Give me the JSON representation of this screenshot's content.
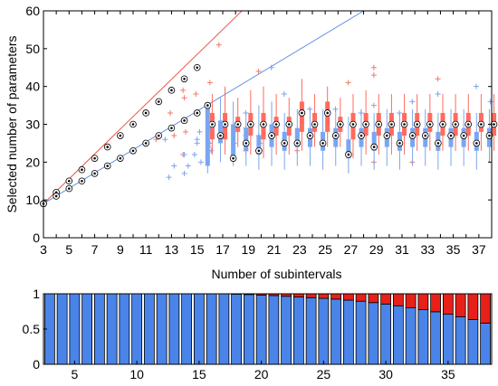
{
  "chart_data": [
    {
      "type": "box",
      "xlabel": "Number of subintervals",
      "ylabel": "Selected number of parameters",
      "xlim": [
        3,
        38
      ],
      "ylim": [
        0,
        60
      ],
      "xticks": [
        3,
        5,
        7,
        9,
        11,
        13,
        15,
        17,
        19,
        21,
        23,
        25,
        27,
        29,
        31,
        33,
        35,
        37
      ],
      "yticks": [
        0,
        10,
        20,
        30,
        40,
        50,
        60
      ],
      "grid": false,
      "colors": {
        "red": "#ff6b5e",
        "blue": "#7aa6f0",
        "red_line": "#e8584a",
        "blue_line": "#5f8fe6",
        "outlier_red": "#f07a6b",
        "outlier_blue": "#7fa2ea"
      },
      "reference_lines": [
        {
          "color": "red",
          "x": [
            3,
            18.5
          ],
          "y": [
            9,
            60
          ]
        },
        {
          "color": "blue",
          "x": [
            3,
            28
          ],
          "y": [
            9,
            60
          ]
        }
      ],
      "series": [
        {
          "color": "red",
          "boxes": [
            {
              "x": 3,
              "q1": 9,
              "median": 9,
              "q3": 9,
              "wlo": 9,
              "whi": 9
            },
            {
              "x": 4,
              "q1": 12,
              "median": 12,
              "q3": 12,
              "wlo": 12,
              "whi": 12
            },
            {
              "x": 5,
              "q1": 15,
              "median": 15,
              "q3": 15,
              "wlo": 15,
              "whi": 15
            },
            {
              "x": 6,
              "q1": 18,
              "median": 18,
              "q3": 18,
              "wlo": 18,
              "whi": 18
            },
            {
              "x": 7,
              "q1": 21,
              "median": 21,
              "q3": 21,
              "wlo": 21,
              "whi": 21
            },
            {
              "x": 8,
              "q1": 24,
              "median": 24,
              "q3": 24,
              "wlo": 24,
              "whi": 24
            },
            {
              "x": 9,
              "q1": 27,
              "median": 27,
              "q3": 27,
              "wlo": 27,
              "whi": 27
            },
            {
              "x": 10,
              "q1": 30,
              "median": 30,
              "q3": 30,
              "wlo": 30,
              "whi": 30
            },
            {
              "x": 11,
              "q1": 33,
              "median": 33,
              "q3": 33,
              "wlo": 33,
              "whi": 33
            },
            {
              "x": 12,
              "q1": 36,
              "median": 36,
              "q3": 36,
              "wlo": 36,
              "whi": 36
            },
            {
              "x": 13,
              "q1": 39,
              "median": 39,
              "q3": 39,
              "wlo": 39,
              "whi": 39
            },
            {
              "x": 14,
              "q1": 42,
              "median": 42,
              "q3": 42,
              "wlo": 42,
              "whi": 42
            },
            {
              "x": 15,
              "q1": 45,
              "median": 45,
              "q3": 45,
              "wlo": 45,
              "whi": 45
            },
            {
              "x": 16,
              "q1": 26,
              "median": 30,
              "q3": 33,
              "wlo": 22,
              "whi": 38
            },
            {
              "x": 17,
              "q1": 26,
              "median": 30,
              "q3": 33,
              "wlo": 22,
              "whi": 40
            },
            {
              "x": 18,
              "q1": 28,
              "median": 30,
              "q3": 32,
              "wlo": 24,
              "whi": 37
            },
            {
              "x": 19,
              "q1": 27,
              "median": 30,
              "q3": 33,
              "wlo": 22,
              "whi": 39
            },
            {
              "x": 20,
              "q1": 26,
              "median": 30,
              "q3": 33,
              "wlo": 21,
              "whi": 40
            },
            {
              "x": 21,
              "q1": 27,
              "median": 30,
              "q3": 32,
              "wlo": 22,
              "whi": 38
            },
            {
              "x": 22,
              "q1": 27,
              "median": 30,
              "q3": 32,
              "wlo": 22,
              "whi": 37
            },
            {
              "x": 23,
              "q1": 28,
              "median": 33,
              "q3": 36,
              "wlo": 23,
              "whi": 42
            },
            {
              "x": 24,
              "q1": 28,
              "median": 30,
              "q3": 33,
              "wlo": 24,
              "whi": 38
            },
            {
              "x": 25,
              "q1": 28,
              "median": 33,
              "q3": 36,
              "wlo": 24,
              "whi": 40
            },
            {
              "x": 26,
              "q1": 28,
              "median": 30,
              "q3": 32,
              "wlo": 24,
              "whi": 37
            },
            {
              "x": 27,
              "q1": 26,
              "median": 30,
              "q3": 33,
              "wlo": 21,
              "whi": 38
            },
            {
              "x": 28,
              "q1": 27,
              "median": 30,
              "q3": 33,
              "wlo": 22,
              "whi": 39
            },
            {
              "x": 29,
              "q1": 27,
              "median": 30,
              "q3": 33,
              "wlo": 22,
              "whi": 38
            },
            {
              "x": 30,
              "q1": 27,
              "median": 30,
              "q3": 33,
              "wlo": 22,
              "whi": 38
            },
            {
              "x": 31,
              "q1": 27,
              "median": 30,
              "q3": 33,
              "wlo": 22,
              "whi": 38
            },
            {
              "x": 32,
              "q1": 27,
              "median": 30,
              "q3": 33,
              "wlo": 23,
              "whi": 38
            },
            {
              "x": 33,
              "q1": 28,
              "median": 30,
              "q3": 33,
              "wlo": 23,
              "whi": 38
            },
            {
              "x": 34,
              "q1": 27,
              "median": 30,
              "q3": 33,
              "wlo": 23,
              "whi": 38
            },
            {
              "x": 35,
              "q1": 27,
              "median": 30,
              "q3": 33,
              "wlo": 23,
              "whi": 38
            },
            {
              "x": 36,
              "q1": 27,
              "median": 30,
              "q3": 33,
              "wlo": 23,
              "whi": 38
            },
            {
              "x": 37,
              "q1": 28,
              "median": 30,
              "q3": 33,
              "wlo": 23,
              "whi": 38
            },
            {
              "x": 38,
              "q1": 27,
              "median": 30,
              "q3": 33,
              "wlo": 23,
              "whi": 38
            }
          ],
          "outliers": [
            [
              15.9,
              23
            ],
            [
              15.9,
              24
            ],
            [
              16,
              41
            ],
            [
              16.7,
              51
            ],
            [
              18.8,
              23
            ],
            [
              19.8,
              44
            ],
            [
              22.8,
              23
            ],
            [
              26.8,
              41
            ],
            [
              28.8,
              45
            ],
            [
              28.8,
              43
            ],
            [
              28.8,
              20
            ],
            [
              31.8,
              20
            ],
            [
              33.8,
              42
            ],
            [
              13.9,
              39
            ],
            [
              14.9,
              38
            ],
            [
              14,
              37
            ],
            [
              12.9,
              33
            ],
            [
              14.1,
              28
            ],
            [
              13.2,
              27
            ],
            [
              11.8,
              26
            ],
            [
              13.9,
              22
            ]
          ]
        },
        {
          "color": "blue",
          "boxes": [
            {
              "x": 3,
              "q1": 9,
              "median": 9,
              "q3": 9,
              "wlo": 9,
              "whi": 9
            },
            {
              "x": 4,
              "q1": 11,
              "median": 11,
              "q3": 11,
              "wlo": 11,
              "whi": 11
            },
            {
              "x": 5,
              "q1": 13,
              "median": 13,
              "q3": 13,
              "wlo": 13,
              "whi": 13
            },
            {
              "x": 6,
              "q1": 15,
              "median": 15,
              "q3": 15,
              "wlo": 15,
              "whi": 15
            },
            {
              "x": 7,
              "q1": 17,
              "median": 17,
              "q3": 17,
              "wlo": 17,
              "whi": 17
            },
            {
              "x": 8,
              "q1": 19,
              "median": 19,
              "q3": 19,
              "wlo": 19,
              "whi": 19
            },
            {
              "x": 9,
              "q1": 21,
              "median": 21,
              "q3": 21,
              "wlo": 21,
              "whi": 21
            },
            {
              "x": 10,
              "q1": 23,
              "median": 23,
              "q3": 23,
              "wlo": 23,
              "whi": 23
            },
            {
              "x": 11,
              "q1": 25,
              "median": 25,
              "q3": 25,
              "wlo": 25,
              "whi": 25
            },
            {
              "x": 12,
              "q1": 27,
              "median": 27,
              "q3": 27,
              "wlo": 27,
              "whi": 27
            },
            {
              "x": 13,
              "q1": 29,
              "median": 29,
              "q3": 29,
              "wlo": 29,
              "whi": 29
            },
            {
              "x": 14,
              "q1": 31,
              "median": 31,
              "q3": 31,
              "wlo": 31,
              "whi": 31
            },
            {
              "x": 15,
              "q1": 33,
              "median": 33,
              "q3": 33,
              "wlo": 33,
              "whi": 33
            },
            {
              "x": 16,
              "q1": 19,
              "median": 35,
              "q3": 35,
              "wlo": 17,
              "whi": 35
            },
            {
              "x": 17,
              "q1": 25,
              "median": 27,
              "q3": 31,
              "wlo": 20,
              "whi": 37
            },
            {
              "x": 18,
              "q1": 21,
              "median": 21,
              "q3": 30,
              "wlo": 19,
              "whi": 36
            },
            {
              "x": 19,
              "q1": 23,
              "median": 25,
              "q3": 29,
              "wlo": 19,
              "whi": 33
            },
            {
              "x": 20,
              "q1": 22,
              "median": 23,
              "q3": 27,
              "wlo": 18,
              "whi": 35
            },
            {
              "x": 21,
              "q1": 24,
              "median": 27,
              "q3": 30,
              "wlo": 19,
              "whi": 36
            },
            {
              "x": 22,
              "q1": 23,
              "median": 25,
              "q3": 28,
              "wlo": 18,
              "whi": 33
            },
            {
              "x": 23,
              "q1": 24,
              "median": 25,
              "q3": 29,
              "wlo": 19,
              "whi": 34
            },
            {
              "x": 24,
              "q1": 24,
              "median": 27,
              "q3": 29,
              "wlo": 19,
              "whi": 34
            },
            {
              "x": 25,
              "q1": 23,
              "median": 25,
              "q3": 28,
              "wlo": 18,
              "whi": 34
            },
            {
              "x": 26,
              "q1": 24,
              "median": 27,
              "q3": 29,
              "wlo": 19,
              "whi": 34
            },
            {
              "x": 27,
              "q1": 21,
              "median": 22,
              "q3": 26,
              "wlo": 17,
              "whi": 32
            },
            {
              "x": 28,
              "q1": 24,
              "median": 27,
              "q3": 29,
              "wlo": 19,
              "whi": 34
            },
            {
              "x": 29,
              "q1": 23,
              "median": 24,
              "q3": 28,
              "wlo": 18,
              "whi": 33
            },
            {
              "x": 30,
              "q1": 24,
              "median": 27,
              "q3": 29,
              "wlo": 19,
              "whi": 34
            },
            {
              "x": 31,
              "q1": 23,
              "median": 25,
              "q3": 28,
              "wlo": 18,
              "whi": 33
            },
            {
              "x": 32,
              "q1": 24,
              "median": 27,
              "q3": 29,
              "wlo": 19,
              "whi": 34
            },
            {
              "x": 33,
              "q1": 24,
              "median": 27,
              "q3": 29,
              "wlo": 19,
              "whi": 34
            },
            {
              "x": 34,
              "q1": 23,
              "median": 25,
              "q3": 28,
              "wlo": 18,
              "whi": 33
            },
            {
              "x": 35,
              "q1": 24,
              "median": 27,
              "q3": 29,
              "wlo": 19,
              "whi": 34
            },
            {
              "x": 36,
              "q1": 24,
              "median": 27,
              "q3": 29,
              "wlo": 19,
              "whi": 34
            },
            {
              "x": 37,
              "q1": 23,
              "median": 25,
              "q3": 28,
              "wlo": 18,
              "whi": 33
            },
            {
              "x": 38,
              "q1": 24,
              "median": 27,
              "q3": 29,
              "wlo": 20,
              "whi": 34
            }
          ],
          "outliers": [
            [
              14,
              17
            ],
            [
              14.3,
              19
            ],
            [
              14,
              22
            ],
            [
              15,
              25
            ],
            [
              15,
              26
            ],
            [
              15.2,
              28
            ],
            [
              14.8,
              22
            ],
            [
              15.3,
              20
            ],
            [
              16,
              25
            ],
            [
              16,
              29
            ],
            [
              16.1,
              23
            ],
            [
              17.9,
              25
            ],
            [
              17.9,
              28
            ],
            [
              17.8,
              22
            ],
            [
              18.8,
              33
            ],
            [
              18.8,
              29
            ],
            [
              18.8,
              27
            ],
            [
              19.8,
              27
            ],
            [
              19.9,
              25
            ],
            [
              20.8,
              45
            ],
            [
              21.8,
              38
            ],
            [
              23.8,
              34
            ],
            [
              25.8,
              34
            ],
            [
              27.8,
              33
            ],
            [
              28.8,
              35
            ],
            [
              30.8,
              33
            ],
            [
              31.8,
              36
            ],
            [
              33.8,
              38
            ],
            [
              36.8,
              40
            ],
            [
              37.9,
              36
            ],
            [
              12.5,
              26
            ],
            [
              13.2,
              19
            ],
            [
              12.8,
              16
            ]
          ]
        }
      ]
    },
    {
      "type": "bar",
      "stacked": true,
      "xlim": [
        2.5,
        38.5
      ],
      "ylim": [
        0,
        1
      ],
      "xticks": [
        5,
        10,
        15,
        20,
        25,
        30,
        35
      ],
      "yticks": [
        0,
        0.5,
        1
      ],
      "categories": [
        3,
        4,
        5,
        6,
        7,
        8,
        9,
        10,
        11,
        12,
        13,
        14,
        15,
        16,
        17,
        18,
        19,
        20,
        21,
        22,
        23,
        24,
        25,
        26,
        27,
        28,
        29,
        30,
        31,
        32,
        33,
        34,
        35,
        36,
        37,
        38
      ],
      "series": [
        {
          "color": "blue",
          "fill": "#4a84e8",
          "values": [
            1,
            1,
            1,
            1,
            1,
            1,
            1,
            1,
            1,
            1,
            1,
            1,
            1,
            1,
            1,
            0.995,
            0.99,
            0.98,
            0.975,
            0.965,
            0.955,
            0.945,
            0.935,
            0.925,
            0.91,
            0.895,
            0.875,
            0.855,
            0.83,
            0.8,
            0.775,
            0.745,
            0.71,
            0.675,
            0.635,
            0.585
          ]
        },
        {
          "color": "red",
          "fill": "#e8201a",
          "values": [
            0,
            0,
            0,
            0,
            0,
            0,
            0,
            0,
            0,
            0,
            0,
            0,
            0,
            0,
            0,
            0.005,
            0.01,
            0.02,
            0.025,
            0.035,
            0.045,
            0.055,
            0.065,
            0.075,
            0.09,
            0.105,
            0.125,
            0.145,
            0.17,
            0.2,
            0.225,
            0.255,
            0.29,
            0.325,
            0.365,
            0.415
          ]
        }
      ]
    }
  ]
}
